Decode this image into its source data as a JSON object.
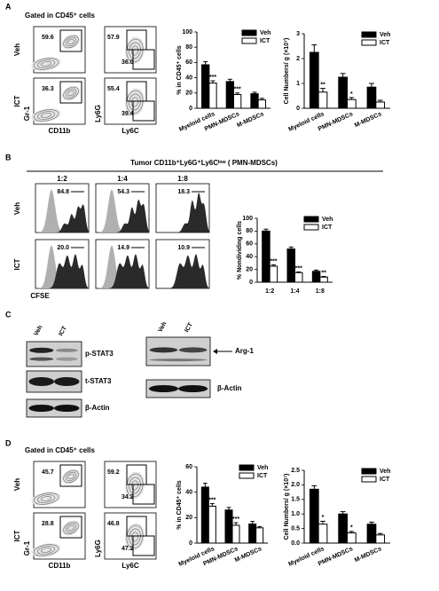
{
  "panel_labels": [
    "A",
    "B",
    "C",
    "D"
  ],
  "panel_a": {
    "gate_title": "Gated in CD45⁺ cells",
    "row_labels": [
      "Veh",
      "ICT"
    ],
    "x_axis_1": "CD11b",
    "y_axis_1": "Gr-1",
    "x_axis_2": "Ly6C",
    "y_axis_2": "Ly6G",
    "gate_values_1": [
      "59.6",
      "36.3"
    ],
    "gate_values_2": [
      [
        "57.9",
        "36.0"
      ],
      [
        "55.4",
        "39.4"
      ]
    ]
  },
  "panel_b": {
    "title": "Tumor CD11b⁺Ly6G⁺Ly6Cˡᵒʷ ( PMN-MDSCs)",
    "ratios": [
      "1:2",
      "1:4",
      "1:8"
    ],
    "row_labels": [
      "Veh",
      "ICT"
    ],
    "x_axis": "CFSE",
    "values": [
      [
        "84.8",
        "54.3",
        "18.3"
      ],
      [
        "20.0",
        "14.9",
        "10.9"
      ]
    ]
  },
  "panel_c": {
    "lane_labels_left": [
      "Veh",
      "ICT"
    ],
    "left_bands": [
      "p-STAT3",
      "t-STAT3",
      "β-Actin"
    ],
    "lane_labels_right": [
      "Veh",
      "ICT"
    ],
    "right_bands": [
      "Arg-1",
      "β-Actin"
    ]
  },
  "panel_d": {
    "gate_title": "Gated in CD45⁺ cells",
    "row_labels": [
      "Veh",
      "ICT"
    ],
    "x_axis_1": "CD11b",
    "y_axis_1": "Gr-1",
    "x_axis_2": "Ly6C",
    "y_axis_2": "Ly6G",
    "gate_values_1": [
      "45.7",
      "28.8"
    ],
    "gate_values_2": [
      [
        "59.2",
        "34.2"
      ],
      [
        "46.8",
        "47.2"
      ]
    ]
  },
  "chart_data": [
    {
      "type": "bar",
      "y_label": "% in CD45⁺ cells",
      "categories": [
        "Myeloid cells",
        "PMN-MDSCs",
        "M-MDSCs"
      ],
      "ylim": [
        0,
        100
      ],
      "yticks": [
        0,
        20,
        40,
        60,
        80,
        100
      ],
      "series": [
        {
          "name": "Veh",
          "color": "#000000",
          "values": [
            57,
            35,
            19
          ],
          "errors": [
            4,
            3,
            2
          ]
        },
        {
          "name": "ICT",
          "color": "#ffffff",
          "values": [
            33,
            18,
            11
          ],
          "errors": [
            3,
            2,
            2
          ],
          "significance": [
            "***",
            "***",
            null
          ]
        }
      ]
    },
    {
      "type": "bar",
      "y_label": "Cell Numbers/ g (×10⁷)",
      "categories": [
        "Myeloid cells",
        "PMN-MDSCs",
        "M-MDSCs"
      ],
      "ylim": [
        0,
        3
      ],
      "yticks": [
        0,
        1,
        2,
        3
      ],
      "series": [
        {
          "name": "Veh",
          "color": "#000000",
          "values": [
            2.25,
            1.25,
            0.85
          ],
          "errors": [
            0.3,
            0.15,
            0.15
          ]
        },
        {
          "name": "ICT",
          "color": "#ffffff",
          "values": [
            0.65,
            0.35,
            0.25
          ],
          "errors": [
            0.15,
            0.08,
            0.07
          ],
          "significance": [
            "**",
            "*",
            null
          ]
        }
      ]
    },
    {
      "type": "bar",
      "y_label": "% Nondividing cells",
      "categories": [
        "1:2",
        "1:4",
        "1:8"
      ],
      "ylim": [
        0,
        100
      ],
      "yticks": [
        0,
        20,
        40,
        60,
        80,
        100
      ],
      "series": [
        {
          "name": "Veh",
          "color": "#000000",
          "values": [
            80,
            52,
            17
          ],
          "errors": [
            3,
            3,
            2
          ]
        },
        {
          "name": "ICT",
          "color": "#ffffff",
          "values": [
            25,
            15,
            8
          ],
          "errors": [
            2,
            1,
            1
          ],
          "significance": [
            "***",
            "***",
            "**"
          ]
        }
      ]
    },
    {
      "type": "bar",
      "y_label": "% in CD45⁺ cells",
      "categories": [
        "Myeloid cells",
        "PMN-MDSCs",
        "M-MDSCs"
      ],
      "ylim": [
        0,
        60
      ],
      "yticks": [
        0,
        20,
        40,
        60
      ],
      "series": [
        {
          "name": "Veh",
          "color": "#000000",
          "values": [
            44,
            26,
            15
          ],
          "errors": [
            3,
            2,
            2
          ]
        },
        {
          "name": "ICT",
          "color": "#ffffff",
          "values": [
            29,
            14,
            12
          ],
          "errors": [
            2,
            2,
            1
          ],
          "significance": [
            "***",
            "***",
            null
          ]
        }
      ]
    },
    {
      "type": "bar",
      "y_label": "Cell Numbers/ g (×10⁷)",
      "categories": [
        "Myeloid cells",
        "PMN-MDSCs",
        "M-MDSCs"
      ],
      "ylim": [
        0,
        2.5
      ],
      "yticks": [
        {
          "value": 0,
          "label": "0.0"
        },
        0.5,
        {
          "value": 1,
          "label": "1.0"
        },
        1.5,
        {
          "value": 2,
          "label": "2.0"
        },
        2.5
      ],
      "series": [
        {
          "name": "Veh",
          "color": "#000000",
          "values": [
            1.85,
            1.0,
            0.65
          ],
          "errors": [
            0.12,
            0.08,
            0.07
          ]
        },
        {
          "name": "ICT",
          "color": "#ffffff",
          "values": [
            0.65,
            0.35,
            0.28
          ],
          "errors": [
            0.1,
            0.05,
            0.05
          ],
          "significance": [
            "*",
            "*",
            null
          ]
        }
      ]
    }
  ]
}
